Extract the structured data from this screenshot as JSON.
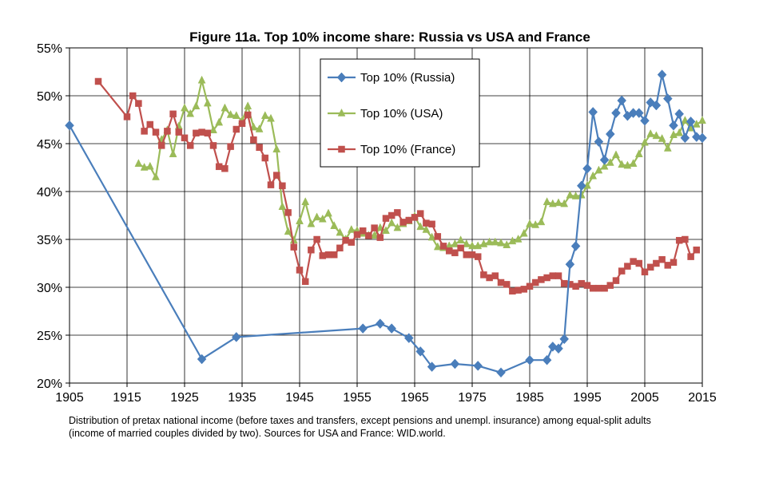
{
  "chart_data": {
    "type": "line",
    "title": "Figure 11a. Top 10% income share: Russia vs USA and France",
    "xlabel": "",
    "ylabel": "",
    "xlim": [
      1905,
      2015
    ],
    "ylim": [
      20,
      55
    ],
    "x_ticks": [
      "1905",
      "1915",
      "1925",
      "1935",
      "1945",
      "1955",
      "1965",
      "1975",
      "1985",
      "1995",
      "2005",
      "2015"
    ],
    "y_ticks": [
      "20%",
      "25%",
      "30%",
      "35%",
      "40%",
      "45%",
      "50%",
      "55%"
    ],
    "grid": true,
    "legend_placement": "top-center",
    "series": [
      {
        "name": "Top 10% (Russia)",
        "color": "#4a7ebb",
        "marker": "diamond",
        "points": [
          [
            1905,
            46.9
          ],
          [
            1928,
            22.5
          ],
          [
            1934,
            24.8
          ],
          [
            1956,
            25.7
          ],
          [
            1959,
            26.2
          ],
          [
            1961,
            25.7
          ],
          [
            1964,
            24.7
          ],
          [
            1966,
            23.3
          ],
          [
            1968,
            21.7
          ],
          [
            1972,
            22.0
          ],
          [
            1976,
            21.8
          ],
          [
            1980,
            21.1
          ],
          [
            1985,
            22.4
          ],
          [
            1988,
            22.4
          ],
          [
            1989,
            23.8
          ],
          [
            1990,
            23.6
          ],
          [
            1991,
            24.6
          ],
          [
            1992,
            32.4
          ],
          [
            1993,
            34.3
          ],
          [
            1994,
            40.6
          ],
          [
            1995,
            42.4
          ],
          [
            1996,
            48.3
          ],
          [
            1997,
            45.2
          ],
          [
            1998,
            43.3
          ],
          [
            1999,
            46.0
          ],
          [
            2000,
            48.2
          ],
          [
            2001,
            49.5
          ],
          [
            2002,
            47.9
          ],
          [
            2003,
            48.2
          ],
          [
            2004,
            48.2
          ],
          [
            2005,
            47.4
          ],
          [
            2006,
            49.3
          ],
          [
            2007,
            49.0
          ],
          [
            2008,
            52.2
          ],
          [
            2009,
            49.7
          ],
          [
            2010,
            46.9
          ],
          [
            2011,
            48.1
          ],
          [
            2012,
            45.6
          ],
          [
            2013,
            47.3
          ],
          [
            2014,
            45.7
          ],
          [
            2015,
            45.6
          ]
        ]
      },
      {
        "name": "Top 10% (USA)",
        "color": "#9bbb59",
        "marker": "triangle",
        "points": [
          [
            1917,
            42.9
          ],
          [
            1918,
            42.5
          ],
          [
            1919,
            42.6
          ],
          [
            1920,
            41.5
          ],
          [
            1921,
            45.4
          ],
          [
            1922,
            46.4
          ],
          [
            1923,
            43.9
          ],
          [
            1924,
            46.8
          ],
          [
            1925,
            48.7
          ],
          [
            1926,
            48.1
          ],
          [
            1927,
            48.9
          ],
          [
            1928,
            51.6
          ],
          [
            1929,
            49.2
          ],
          [
            1930,
            46.4
          ],
          [
            1931,
            47.2
          ],
          [
            1932,
            48.7
          ],
          [
            1933,
            48.0
          ],
          [
            1934,
            47.9
          ],
          [
            1935,
            47.4
          ],
          [
            1936,
            48.9
          ],
          [
            1937,
            46.7
          ],
          [
            1938,
            46.5
          ],
          [
            1939,
            47.9
          ],
          [
            1940,
            47.6
          ],
          [
            1941,
            44.4
          ],
          [
            1942,
            38.4
          ],
          [
            1943,
            35.8
          ],
          [
            1944,
            34.9
          ],
          [
            1945,
            36.9
          ],
          [
            1946,
            38.9
          ],
          [
            1947,
            36.6
          ],
          [
            1948,
            37.3
          ],
          [
            1949,
            37.1
          ],
          [
            1950,
            37.7
          ],
          [
            1951,
            36.4
          ],
          [
            1952,
            35.7
          ],
          [
            1953,
            35.0
          ],
          [
            1954,
            36.0
          ],
          [
            1955,
            35.9
          ],
          [
            1956,
            35.6
          ],
          [
            1957,
            35.4
          ],
          [
            1958,
            35.4
          ],
          [
            1959,
            36.2
          ],
          [
            1960,
            35.9
          ],
          [
            1961,
            36.7
          ],
          [
            1962,
            36.2
          ],
          [
            1963,
            36.6
          ],
          [
            1964,
            36.9
          ],
          [
            1965,
            37.4
          ],
          [
            1966,
            36.3
          ],
          [
            1967,
            36.0
          ],
          [
            1968,
            35.2
          ],
          [
            1969,
            34.2
          ],
          [
            1970,
            34.1
          ],
          [
            1971,
            34.3
          ],
          [
            1972,
            34.5
          ],
          [
            1973,
            34.9
          ],
          [
            1974,
            34.5
          ],
          [
            1975,
            34.3
          ],
          [
            1976,
            34.3
          ],
          [
            1977,
            34.5
          ],
          [
            1978,
            34.7
          ],
          [
            1979,
            34.7
          ],
          [
            1980,
            34.6
          ],
          [
            1981,
            34.4
          ],
          [
            1982,
            34.8
          ],
          [
            1983,
            35.0
          ],
          [
            1984,
            35.6
          ],
          [
            1985,
            36.6
          ],
          [
            1986,
            36.5
          ],
          [
            1987,
            36.8
          ],
          [
            1988,
            38.9
          ],
          [
            1989,
            38.7
          ],
          [
            1990,
            38.8
          ],
          [
            1991,
            38.7
          ],
          [
            1992,
            39.6
          ],
          [
            1993,
            39.5
          ],
          [
            1994,
            39.6
          ],
          [
            1995,
            40.6
          ],
          [
            1996,
            41.6
          ],
          [
            1997,
            42.2
          ],
          [
            1998,
            42.6
          ],
          [
            1999,
            43.0
          ],
          [
            2000,
            43.8
          ],
          [
            2001,
            42.8
          ],
          [
            2002,
            42.7
          ],
          [
            2003,
            42.9
          ],
          [
            2004,
            43.9
          ],
          [
            2005,
            45.1
          ],
          [
            2006,
            46.0
          ],
          [
            2007,
            45.8
          ],
          [
            2008,
            45.5
          ],
          [
            2009,
            44.5
          ],
          [
            2010,
            45.9
          ],
          [
            2011,
            46.1
          ],
          [
            2012,
            47.4
          ],
          [
            2013,
            46.6
          ],
          [
            2014,
            47.0
          ],
          [
            2015,
            47.4
          ]
        ]
      },
      {
        "name": "Top 10% (France)",
        "color": "#c0504d",
        "marker": "square",
        "points": [
          [
            1910,
            51.5
          ],
          [
            1915,
            47.8
          ],
          [
            1916,
            50.0
          ],
          [
            1917,
            49.2
          ],
          [
            1918,
            46.3
          ],
          [
            1919,
            47.0
          ],
          [
            1920,
            46.2
          ],
          [
            1921,
            44.8
          ],
          [
            1922,
            46.3
          ],
          [
            1923,
            48.1
          ],
          [
            1924,
            46.2
          ],
          [
            1925,
            45.6
          ],
          [
            1926,
            44.8
          ],
          [
            1927,
            46.1
          ],
          [
            1928,
            46.2
          ],
          [
            1929,
            46.1
          ],
          [
            1930,
            44.8
          ],
          [
            1931,
            42.6
          ],
          [
            1932,
            42.4
          ],
          [
            1933,
            44.7
          ],
          [
            1934,
            46.5
          ],
          [
            1935,
            47.1
          ],
          [
            1936,
            48.0
          ],
          [
            1937,
            45.4
          ],
          [
            1938,
            44.6
          ],
          [
            1939,
            43.5
          ],
          [
            1940,
            40.7
          ],
          [
            1941,
            41.7
          ],
          [
            1942,
            40.6
          ],
          [
            1943,
            37.8
          ],
          [
            1944,
            34.2
          ],
          [
            1945,
            31.8
          ],
          [
            1946,
            30.6
          ],
          [
            1947,
            33.9
          ],
          [
            1948,
            35.0
          ],
          [
            1949,
            33.3
          ],
          [
            1950,
            33.4
          ],
          [
            1951,
            33.4
          ],
          [
            1952,
            34.1
          ],
          [
            1953,
            34.9
          ],
          [
            1954,
            34.7
          ],
          [
            1955,
            35.5
          ],
          [
            1956,
            35.9
          ],
          [
            1957,
            35.4
          ],
          [
            1958,
            36.2
          ],
          [
            1959,
            35.2
          ],
          [
            1960,
            37.2
          ],
          [
            1961,
            37.5
          ],
          [
            1962,
            37.8
          ],
          [
            1963,
            36.8
          ],
          [
            1964,
            37.0
          ],
          [
            1965,
            37.3
          ],
          [
            1966,
            37.7
          ],
          [
            1967,
            36.7
          ],
          [
            1968,
            36.6
          ],
          [
            1969,
            35.3
          ],
          [
            1970,
            34.3
          ],
          [
            1971,
            33.8
          ],
          [
            1972,
            33.6
          ],
          [
            1973,
            34.1
          ],
          [
            1974,
            33.4
          ],
          [
            1975,
            33.4
          ],
          [
            1976,
            33.2
          ],
          [
            1977,
            31.3
          ],
          [
            1978,
            31.0
          ],
          [
            1979,
            31.2
          ],
          [
            1980,
            30.5
          ],
          [
            1981,
            30.3
          ],
          [
            1982,
            29.6
          ],
          [
            1983,
            29.7
          ],
          [
            1984,
            29.8
          ],
          [
            1985,
            30.1
          ],
          [
            1986,
            30.5
          ],
          [
            1987,
            30.8
          ],
          [
            1988,
            31.0
          ],
          [
            1989,
            31.2
          ],
          [
            1990,
            31.2
          ],
          [
            1991,
            30.4
          ],
          [
            1992,
            30.3
          ],
          [
            1993,
            30.1
          ],
          [
            1994,
            30.4
          ],
          [
            1995,
            30.2
          ],
          [
            1996,
            29.9
          ],
          [
            1997,
            29.9
          ],
          [
            1998,
            29.9
          ],
          [
            1999,
            30.2
          ],
          [
            2000,
            30.7
          ],
          [
            2001,
            31.7
          ],
          [
            2002,
            32.2
          ],
          [
            2003,
            32.7
          ],
          [
            2004,
            32.5
          ],
          [
            2005,
            31.6
          ],
          [
            2006,
            32.1
          ],
          [
            2007,
            32.5
          ],
          [
            2008,
            32.9
          ],
          [
            2009,
            32.3
          ],
          [
            2010,
            32.6
          ],
          [
            2011,
            34.9
          ],
          [
            2012,
            35.0
          ],
          [
            2013,
            33.2
          ],
          [
            2014,
            33.9
          ]
        ]
      }
    ],
    "note_lines": [
      "Distribution of pretax national income (before taxes and transfers, except pensions and unempl. insurance) among equal-split adults",
      "(income of married couples divided by two). Sources for USA and France: WID.world."
    ]
  }
}
